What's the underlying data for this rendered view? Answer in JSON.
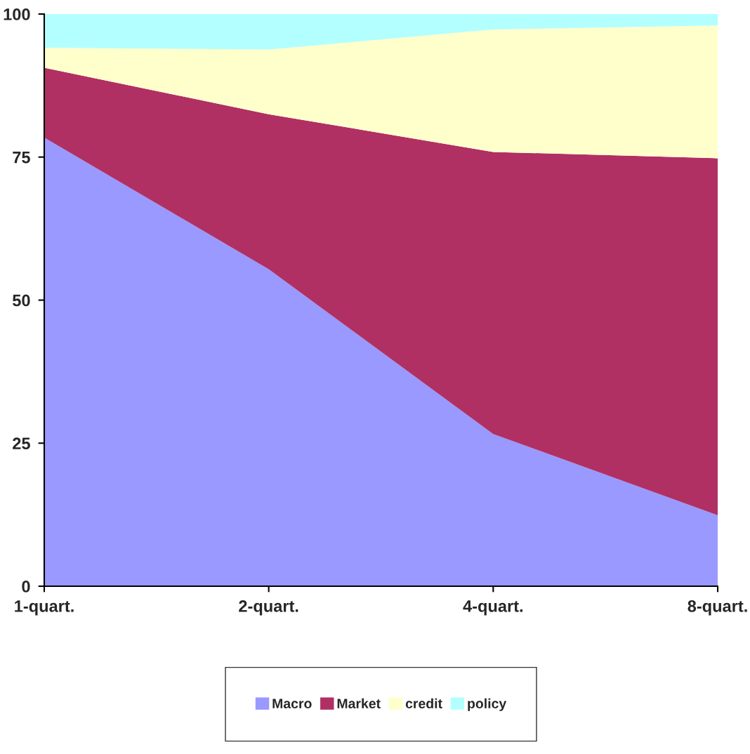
{
  "chart_data": {
    "type": "area",
    "stacked": true,
    "categories": [
      "1-quart.",
      "2-quart.",
      "4-quart.",
      "8-quart."
    ],
    "ylim": [
      0,
      100
    ],
    "yticks": [
      0,
      25,
      50,
      75,
      100
    ],
    "grid": false,
    "legend": "bottom",
    "series": [
      {
        "name": "Macro",
        "color": "#9999ff",
        "values": [
          78.4,
          55.4,
          26.6,
          12.4
        ]
      },
      {
        "name": "Market",
        "color": "#b03064",
        "values": [
          12.2,
          27.1,
          49.3,
          62.4
        ]
      },
      {
        "name": "credit",
        "color": "#ffffcc",
        "values": [
          3.5,
          11.3,
          21.4,
          23.2
        ]
      },
      {
        "name": "policy",
        "color": "#b3ffff",
        "values": [
          5.9,
          6.2,
          2.7,
          2.0
        ]
      }
    ]
  }
}
